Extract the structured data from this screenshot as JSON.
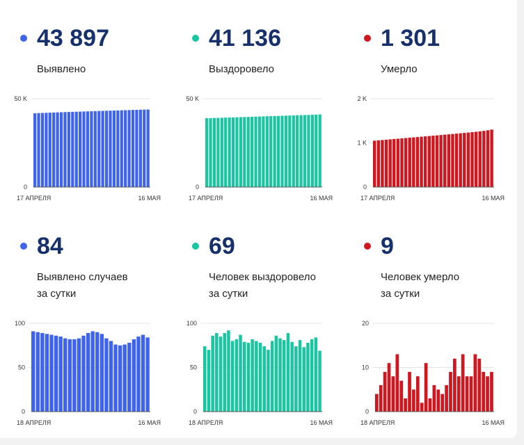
{
  "panels": [
    {
      "value": "43 897",
      "label_lines": [
        "Выявлено"
      ],
      "color": "#3d63ef",
      "chart_data": {
        "type": "bar",
        "x_start": "17 АПРЕЛЯ",
        "x_end": "16 МАЯ",
        "yticks": [
          {
            "value": 0,
            "label": "0"
          },
          {
            "value": 50000,
            "label": "50 K"
          }
        ],
        "ylim": [
          0,
          50000
        ],
        "gridlines": [
          50000
        ],
        "values": [
          41760,
          41850,
          41940,
          42020,
          42100,
          42180,
          42260,
          42340,
          42420,
          42500,
          42570,
          42640,
          42710,
          42780,
          42850,
          42920,
          42990,
          43050,
          43110,
          43170,
          43230,
          43300,
          43360,
          43430,
          43500,
          43570,
          43640,
          43710,
          43780,
          43840,
          43897
        ]
      }
    },
    {
      "value": "41 136",
      "label_lines": [
        "Выздоровело"
      ],
      "color": "#19c6a1",
      "chart_data": {
        "type": "bar",
        "x_start": "17 АПРЕЛЯ",
        "x_end": "16 МАЯ",
        "yticks": [
          {
            "value": 0,
            "label": "0"
          },
          {
            "value": 50000,
            "label": "50 K"
          }
        ],
        "ylim": [
          0,
          50000
        ],
        "gridlines": [
          50000
        ],
        "values": [
          38950,
          39020,
          39090,
          39160,
          39230,
          39300,
          39370,
          39440,
          39510,
          39580,
          39650,
          39720,
          39790,
          39860,
          39930,
          40000,
          40070,
          40140,
          40210,
          40280,
          40350,
          40420,
          40490,
          40560,
          40630,
          40700,
          40770,
          40840,
          40910,
          41020,
          41136
        ]
      }
    },
    {
      "value": "1 301",
      "label_lines": [
        "Умерло"
      ],
      "color": "#d0161e",
      "chart_data": {
        "type": "bar",
        "x_start": "17 АПРЕЛЯ",
        "x_end": "16 МАЯ",
        "yticks": [
          {
            "value": 0,
            "label": "0"
          },
          {
            "value": 1000,
            "label": "1 K"
          },
          {
            "value": 2000,
            "label": "2 K"
          }
        ],
        "ylim": [
          0,
          2000
        ],
        "gridlines": [
          1000,
          2000
        ],
        "values": [
          1050,
          1058,
          1065,
          1072,
          1080,
          1088,
          1095,
          1102,
          1110,
          1118,
          1125,
          1132,
          1140,
          1148,
          1155,
          1163,
          1170,
          1178,
          1186,
          1194,
          1202,
          1210,
          1218,
          1226,
          1234,
          1243,
          1252,
          1262,
          1272,
          1286,
          1301
        ]
      }
    },
    {
      "value": "84",
      "label_lines": [
        "Выявлено случаев",
        "за сутки"
      ],
      "color": "#3d63ef",
      "chart_data": {
        "type": "bar",
        "x_start": "18 АПРЕЛЯ",
        "x_end": "16 МАЯ",
        "yticks": [
          {
            "value": 0,
            "label": "0"
          },
          {
            "value": 50,
            "label": "50"
          },
          {
            "value": 100,
            "label": "100"
          }
        ],
        "ylim": [
          0,
          100
        ],
        "gridlines": [
          50,
          100
        ],
        "values": [
          91,
          90,
          89,
          88,
          87,
          86,
          85,
          83,
          82,
          82,
          83,
          86,
          89,
          91,
          90,
          88,
          83,
          80,
          76,
          75,
          76,
          78,
          82,
          85,
          87,
          84
        ]
      }
    },
    {
      "value": "69",
      "label_lines": [
        "Человек выздоровело",
        "за сутки"
      ],
      "color": "#19c6a1",
      "chart_data": {
        "type": "bar",
        "x_start": "18 АПРЕЛЯ",
        "x_end": "16 МАЯ",
        "yticks": [
          {
            "value": 0,
            "label": "0"
          },
          {
            "value": 50,
            "label": "50"
          },
          {
            "value": 100,
            "label": "100"
          }
        ],
        "ylim": [
          0,
          100
        ],
        "gridlines": [
          50,
          100
        ],
        "values": [
          74,
          70,
          86,
          89,
          85,
          89,
          92,
          80,
          82,
          87,
          79,
          78,
          82,
          80,
          78,
          74,
          70,
          80,
          86,
          83,
          81,
          89,
          79,
          74,
          81,
          73,
          78,
          82,
          84,
          69
        ]
      }
    },
    {
      "value": "9",
      "label_lines": [
        "Человек умерло",
        "за сутки"
      ],
      "color": "#d0161e",
      "chart_data": {
        "type": "bar",
        "x_start": "18 АПРЕЛЯ",
        "x_end": "16 МАЯ",
        "yticks": [
          {
            "value": 0,
            "label": "0"
          },
          {
            "value": 10,
            "label": "10"
          },
          {
            "value": 20,
            "label": "20"
          }
        ],
        "ylim": [
          0,
          20
        ],
        "gridlines": [
          10,
          20
        ],
        "values": [
          4,
          6,
          9,
          11,
          8,
          13,
          7,
          3,
          9,
          5,
          8,
          2,
          11,
          3,
          6,
          5,
          4,
          6,
          9,
          12,
          8,
          13,
          8,
          8,
          13,
          12,
          9,
          8,
          9
        ]
      }
    }
  ]
}
